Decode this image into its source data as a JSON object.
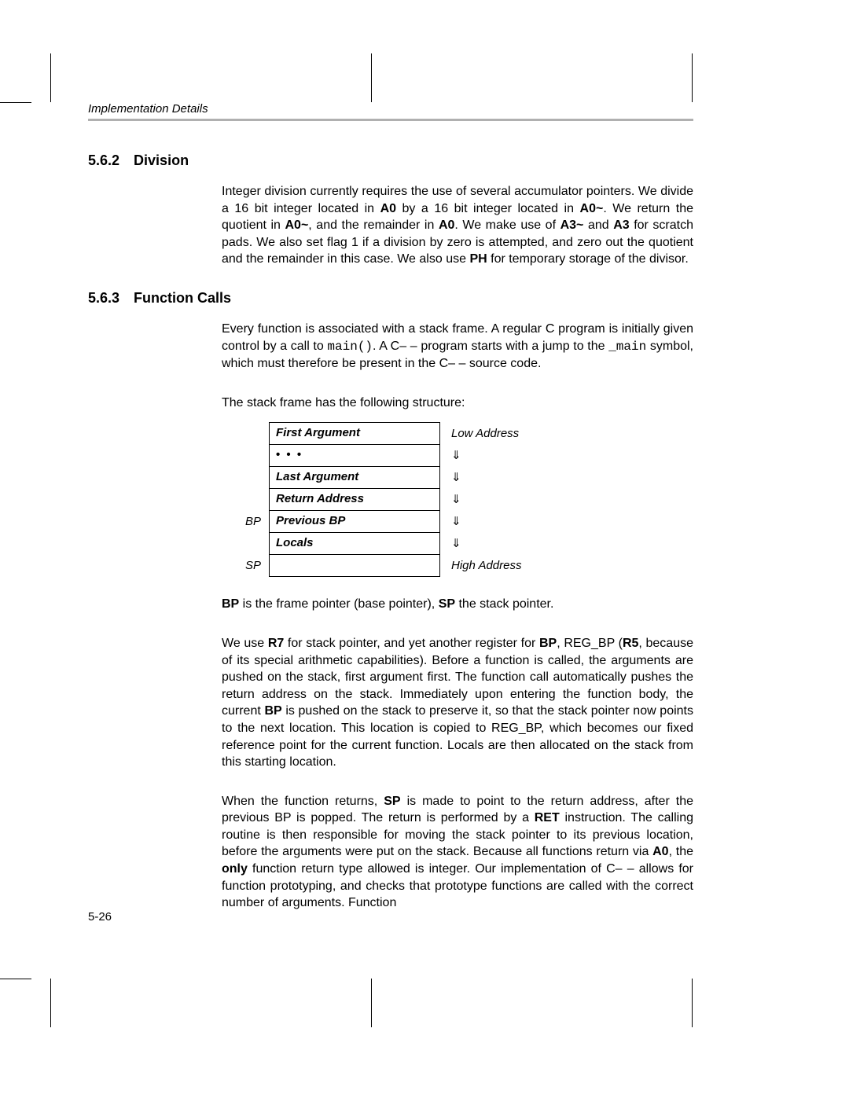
{
  "running_head": "Implementation Details",
  "page_number": "5-26",
  "sections": {
    "division": {
      "number": "5.6.2",
      "title": "Division"
    },
    "fcalls": {
      "number": "5.6.3",
      "title": "Function Calls"
    }
  },
  "paragraphs": {
    "div_p1_a": "Integer division currently requires the use of several accumulator pointers. We divide a 16 bit integer located in ",
    "div_p1_b": " by a 16 bit integer located in ",
    "div_p1_c": ". We return the quotient in ",
    "div_p1_d": ", and the remainder in ",
    "div_p1_e": ". We make use of ",
    "div_p1_f": " and ",
    "div_p1_g": " for scratch pads. We also set flag 1 if a division by zero is attempted, and zero out the quotient and the remainder in this case. We also use ",
    "div_p1_h": " for temporary storage of the divisor.",
    "A0": "A0",
    "A0t": "A0~",
    "A3": "A3",
    "A3t": "A3~",
    "PH": "PH",
    "fc_p1_a": "Every function is associated with a stack frame. A regular C program is initially given control by a call to ",
    "fc_p1_main": "main()",
    "fc_p1_b": ". A C– – program starts with a jump to the ",
    "fc_p1_umain": "_main",
    "fc_p1_c": " symbol, which must therefore be present in the C– – source code.",
    "fc_p2": "The stack frame has the following structure:",
    "fc_p3_a": "BP",
    "fc_p3_b": " is the frame pointer (base pointer), ",
    "fc_p3_c": "SP",
    "fc_p3_d": " the stack pointer.",
    "fc_p4_a": "We use ",
    "fc_p4_R7": "R7",
    "fc_p4_b": " for stack pointer, and yet another register for ",
    "fc_p4_BP": "BP",
    "fc_p4_c": ", REG_BP (",
    "fc_p4_R5": "R5",
    "fc_p4_d": ", because of its special arithmetic capabilities). Before a function is called, the arguments are pushed on the stack, first argument first. The function call automatically pushes the return address on the stack. Immediately upon entering the function body, the current ",
    "fc_p4_BP2": "BP",
    "fc_p4_e": " is pushed on the stack to preserve it, so that the stack pointer now points to the next location. This location is copied to REG_BP, which becomes our fixed reference point for the current function. Locals are then allocated on the stack from this starting location.",
    "fc_p5_a": "When the function returns, ",
    "fc_p5_SP": "SP",
    "fc_p5_b": " is made to point to the return address, after the previous BP is popped. The return is performed by a ",
    "fc_p5_RET": "RET",
    "fc_p5_c": " instruction. The calling routine is then responsible for moving the stack pointer to its previous location, before the arguments were put on the stack. Because all functions return via ",
    "fc_p5_A0": "A0",
    "fc_p5_d": ", the ",
    "fc_p5_only": "only",
    "fc_p5_e": " function return type allowed is integer. Our implementation of C– – allows for function prototyping, and checks that prototype functions are called with the correct number of arguments. Function"
  },
  "stack": {
    "rows": [
      {
        "left": "",
        "cell": "First Argument",
        "right": "Low Address",
        "dots": false
      },
      {
        "left": "",
        "cell": "• • •",
        "right": "⇓",
        "dots": true
      },
      {
        "left": "",
        "cell": "Last Argument",
        "right": "⇓",
        "dots": false
      },
      {
        "left": "",
        "cell": "Return Address",
        "right": "⇓",
        "dots": false
      },
      {
        "left": "BP",
        "cell": "Previous BP",
        "right": "⇓",
        "dots": false
      },
      {
        "left": "",
        "cell": "Locals",
        "right": "⇓",
        "dots": false
      },
      {
        "left": "SP",
        "cell": "",
        "right": "High Address",
        "dots": false
      }
    ]
  }
}
